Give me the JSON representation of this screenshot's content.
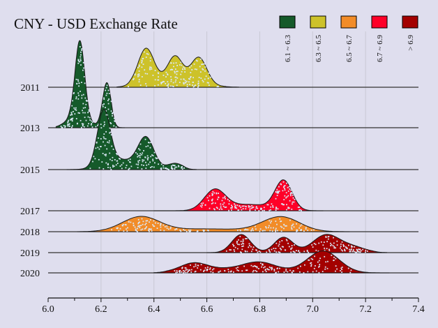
{
  "chart_data": {
    "type": "ridgeline",
    "title": "CNY - USD Exchange Rate",
    "xlabel": "",
    "ylabel": "",
    "xlim": [
      6.0,
      7.4
    ],
    "xticks": [
      "6.0",
      "6.2",
      "6.4",
      "6.6",
      "6.8",
      "7.0",
      "7.2",
      "7.4"
    ],
    "grid": "vertical",
    "legend_placement": "top-right",
    "legend": [
      {
        "label": "6.1 ~ 6.3",
        "color": "#155a2a"
      },
      {
        "label": "6.3 ~ 6.5",
        "color": "#cdc22a"
      },
      {
        "label": "6.5 ~ 6.7",
        "color": "#f28c28"
      },
      {
        "label": "6.7 ~ 6.9",
        "color": "#ff0028"
      },
      {
        "label": "> 6.9",
        "color": "#a30000"
      }
    ],
    "ridges": [
      {
        "year": "2011",
        "color": "#cdc22a",
        "range": [
          6.26,
          6.72
        ],
        "components": [
          [
            6.37,
            0.03,
            50
          ],
          [
            6.48,
            0.028,
            36
          ],
          [
            6.57,
            0.03,
            38
          ],
          [
            6.46,
            0.1,
            9
          ]
        ]
      },
      {
        "year": "2013",
        "color": "#155a2a",
        "range": [
          6.03,
          6.29
        ],
        "components": [
          [
            6.12,
            0.018,
            112
          ],
          [
            6.222,
            0.016,
            64
          ],
          [
            6.1,
            0.05,
            14
          ]
        ]
      },
      {
        "year": "2015",
        "color": "#155a2a",
        "range": [
          6.07,
          6.56
        ],
        "components": [
          [
            6.21,
            0.024,
            78
          ],
          [
            6.37,
            0.03,
            44
          ],
          [
            6.48,
            0.03,
            9
          ],
          [
            6.27,
            0.06,
            14
          ]
        ]
      },
      {
        "year": "2017",
        "color": "#ff0028",
        "range": [
          6.4,
          7.04
        ],
        "components": [
          [
            6.63,
            0.04,
            29
          ],
          [
            6.89,
            0.032,
            42
          ],
          [
            6.76,
            0.08,
            9
          ]
        ]
      },
      {
        "year": "2018",
        "color": "#f28c28",
        "range": [
          6.11,
          7.14
        ],
        "components": [
          [
            6.35,
            0.07,
            21
          ],
          [
            6.88,
            0.07,
            21
          ],
          [
            6.6,
            0.15,
            4
          ]
        ]
      },
      {
        "year": "2019",
        "color": "#a30000",
        "range": [
          6.6,
          7.28
        ],
        "components": [
          [
            6.73,
            0.035,
            26
          ],
          [
            6.89,
            0.035,
            22
          ],
          [
            7.05,
            0.05,
            25
          ],
          [
            7.15,
            0.05,
            8
          ]
        ]
      },
      {
        "year": "2020",
        "color": "#a30000",
        "range": [
          6.4,
          7.29
        ],
        "components": [
          [
            6.55,
            0.05,
            11
          ],
          [
            6.8,
            0.06,
            11
          ],
          [
            7.04,
            0.06,
            31
          ],
          [
            6.7,
            0.15,
            6
          ]
        ]
      }
    ]
  }
}
